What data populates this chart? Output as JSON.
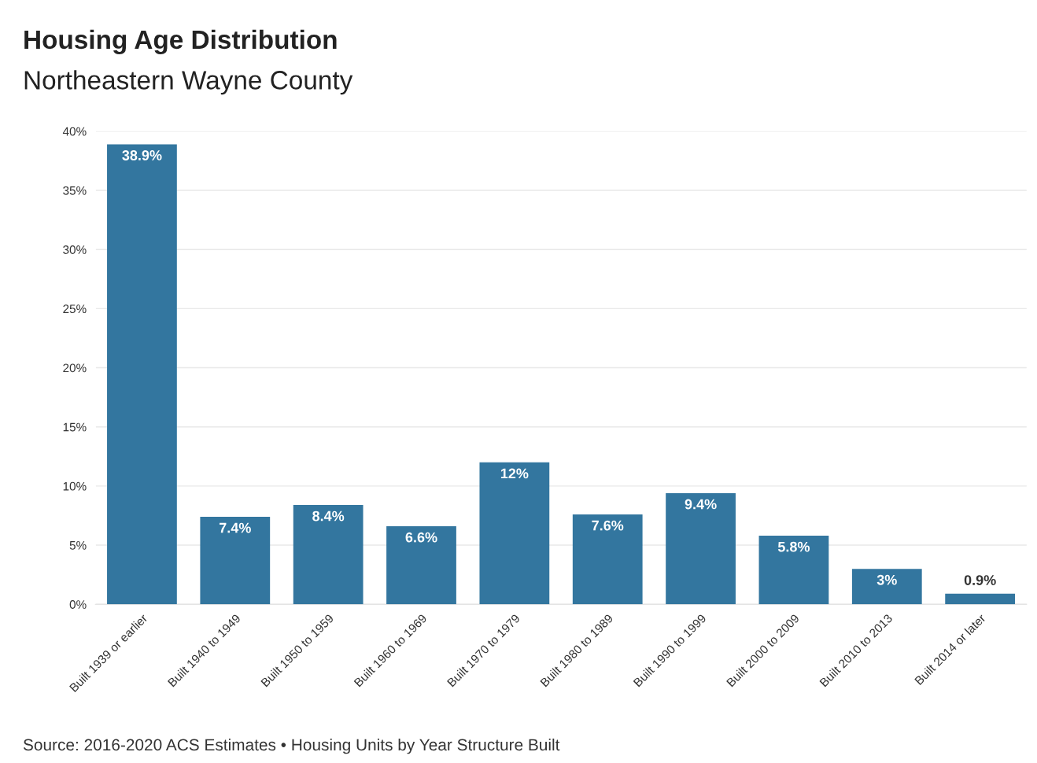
{
  "chart_data": {
    "type": "bar",
    "title": "Housing Age Distribution",
    "subtitle": "Northeastern Wayne County",
    "categories": [
      "Built 1939 or earlier",
      "Built 1940 to 1949",
      "Built 1950 to 1959",
      "Built 1960 to 1969",
      "Built 1970 to 1979",
      "Built 1980 to 1989",
      "Built 1990 to 1999",
      "Built 2000 to 2009",
      "Built 2010 to 2013",
      "Built 2014 or later"
    ],
    "values": [
      38.9,
      7.4,
      8.4,
      6.6,
      12,
      7.6,
      9.4,
      5.8,
      3,
      0.9
    ],
    "value_labels": [
      "38.9%",
      "7.4%",
      "8.4%",
      "6.6%",
      "12%",
      "7.6%",
      "9.4%",
      "5.8%",
      "3%",
      "0.9%"
    ],
    "color": "#33769f",
    "ylim": [
      0,
      40
    ],
    "yticks": [
      {
        "value": 0,
        "label": "0%"
      },
      {
        "value": 5,
        "label": "5%"
      },
      {
        "value": 10,
        "label": "10%"
      },
      {
        "value": 15,
        "label": "15%"
      },
      {
        "value": 20,
        "label": "20%"
      },
      {
        "value": 25,
        "label": "25%"
      },
      {
        "value": 30,
        "label": "30%"
      },
      {
        "value": 35,
        "label": "35%"
      },
      {
        "value": 40,
        "label": "40%"
      }
    ],
    "grid": "y",
    "annotations": [
      "Source: 2016-2020 ACS Estimates • Housing Units by Year Structure Built"
    ]
  }
}
